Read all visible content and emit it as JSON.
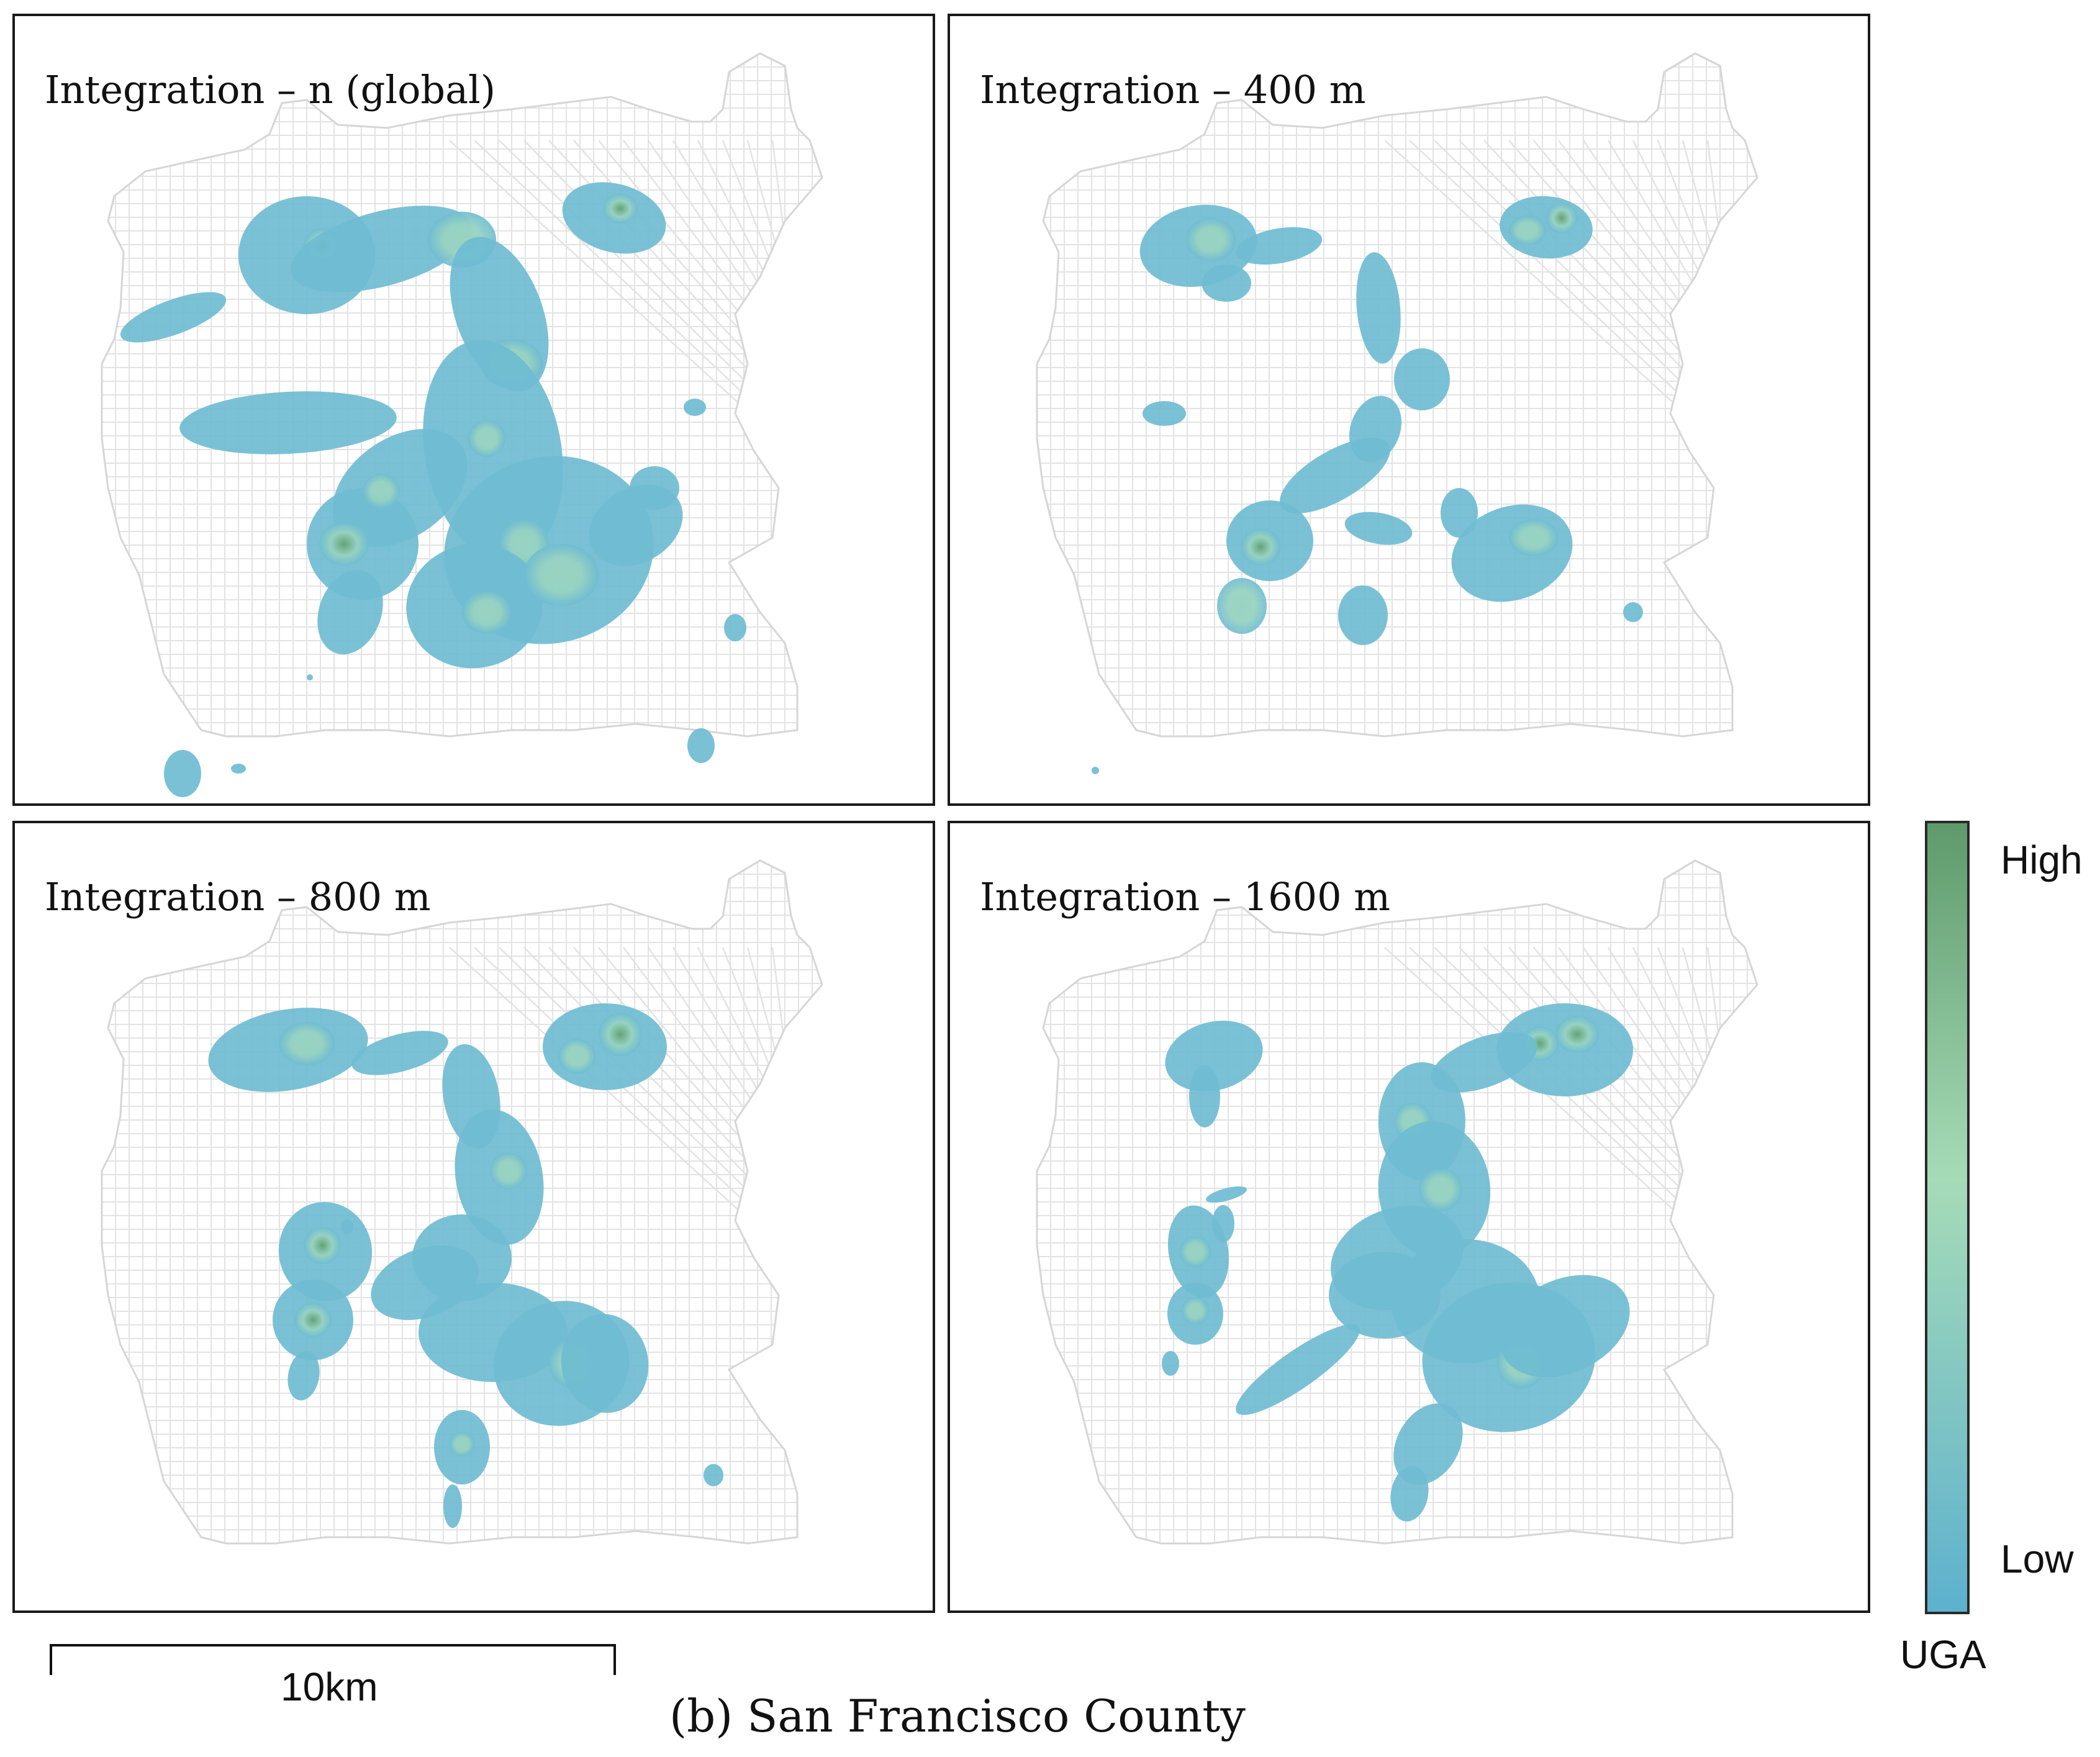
{
  "caption": "(b) San Francisco County",
  "scale_bar": {
    "label": "10km"
  },
  "legend": {
    "title": "UGA",
    "high_label": "High",
    "low_label": "Low",
    "colors": {
      "high": "#5e9a6b",
      "mid": "#a6dbb7",
      "low": "#5db1ce"
    }
  },
  "palette": {
    "road": "#e3e3e3",
    "blob_low": "#6fbcd2",
    "blob_mid": "#98d3c1",
    "blob_high": "#64a374"
  },
  "panels": [
    {
      "id": "global",
      "title": "Integration – n (global)"
    },
    {
      "id": "400m",
      "title": "Integration – 400 m"
    },
    {
      "id": "800m",
      "title": "Integration – 800 m"
    },
    {
      "id": "1600m",
      "title": "Integration – 1600 m"
    }
  ]
}
